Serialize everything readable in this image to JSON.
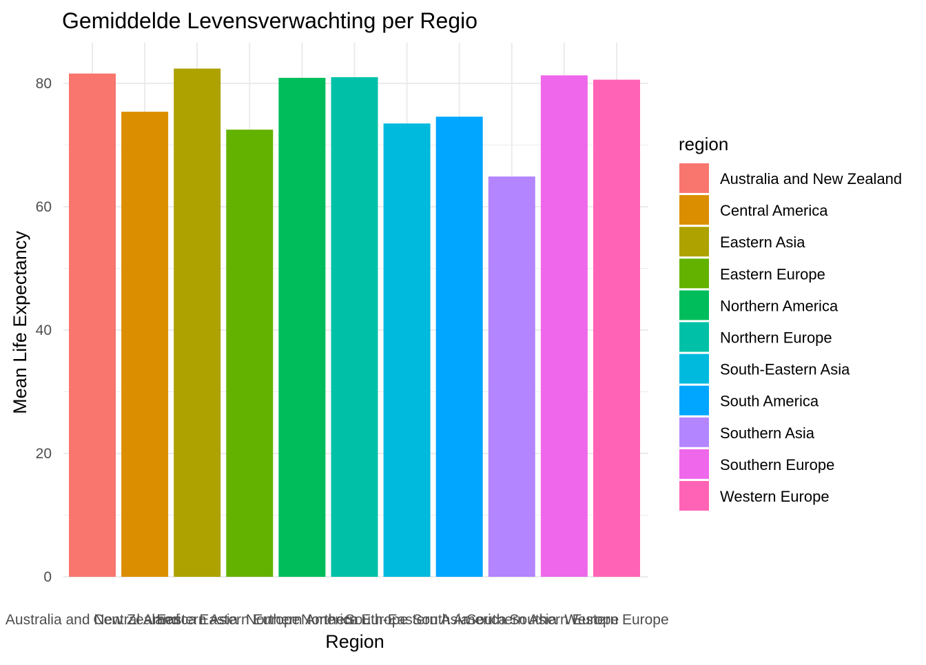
{
  "chart_data": {
    "type": "bar",
    "title": "Gemiddelde Levensverwachting per Regio",
    "xlabel": "Region",
    "ylabel": "Mean Life Expectancy",
    "categories": [
      "Australia and New Zealand",
      "Central America",
      "Eastern Asia",
      "Eastern Europe",
      "Northern America",
      "Northern Europe",
      "South-Eastern Asia",
      "South America",
      "Southern Asia",
      "Southern Europe",
      "Western Europe"
    ],
    "values": [
      81.6,
      75.4,
      82.4,
      72.5,
      80.9,
      81.0,
      73.5,
      74.6,
      64.9,
      81.3,
      80.6
    ],
    "colors": [
      "#F8766D",
      "#DB8E00",
      "#AEA200",
      "#64B200",
      "#00BD5C",
      "#00C1A7",
      "#00BADE",
      "#00A6FF",
      "#B385FF",
      "#EF67EB",
      "#FF63B6"
    ],
    "ylim": [
      0,
      86
    ],
    "yticks": [
      0,
      20,
      40,
      60,
      80
    ],
    "grid": true,
    "legend": {
      "title": "region",
      "position": "right"
    }
  }
}
